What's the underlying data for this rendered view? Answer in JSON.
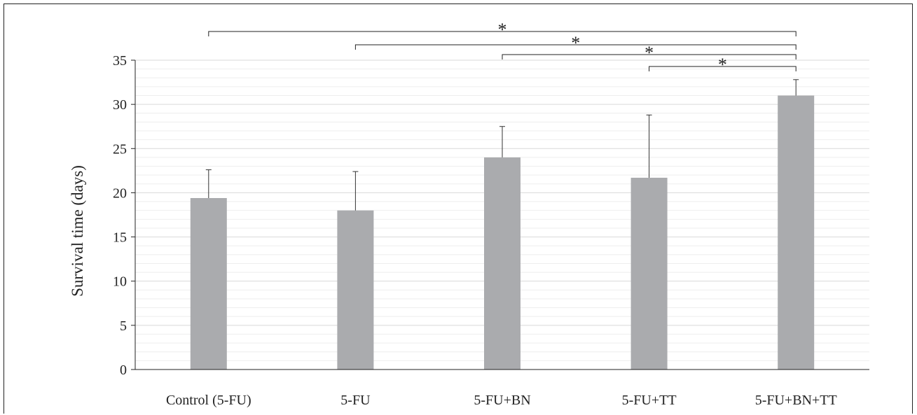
{
  "chart_data": {
    "type": "bar",
    "title": "",
    "xlabel": "",
    "ylabel": "Survival time (days)",
    "ylim": [
      0,
      35
    ],
    "yticks": [
      0,
      5,
      10,
      15,
      20,
      25,
      30,
      35
    ],
    "minor_grid_step": 1,
    "grid": true,
    "categories": [
      "Control (5-FU)",
      "5-FU",
      "5-FU+BN",
      "5-FU+TT",
      "5-FU+BN+TT"
    ],
    "values": [
      19.4,
      18.0,
      24.0,
      21.7,
      31.0
    ],
    "error_bars": [
      3.2,
      4.4,
      3.5,
      7.1,
      1.8
    ],
    "bar_color": "#aaabae",
    "significance": [
      {
        "from": "Control (5-FU)",
        "to": "5-FU+BN+TT",
        "label": "*"
      },
      {
        "from": "5-FU",
        "to": "5-FU+BN+TT",
        "label": "*"
      },
      {
        "from": "5-FU+BN",
        "to": "5-FU+BN+TT",
        "label": "*"
      },
      {
        "from": "5-FU+TT",
        "to": "5-FU+BN+TT",
        "label": "*"
      }
    ]
  }
}
